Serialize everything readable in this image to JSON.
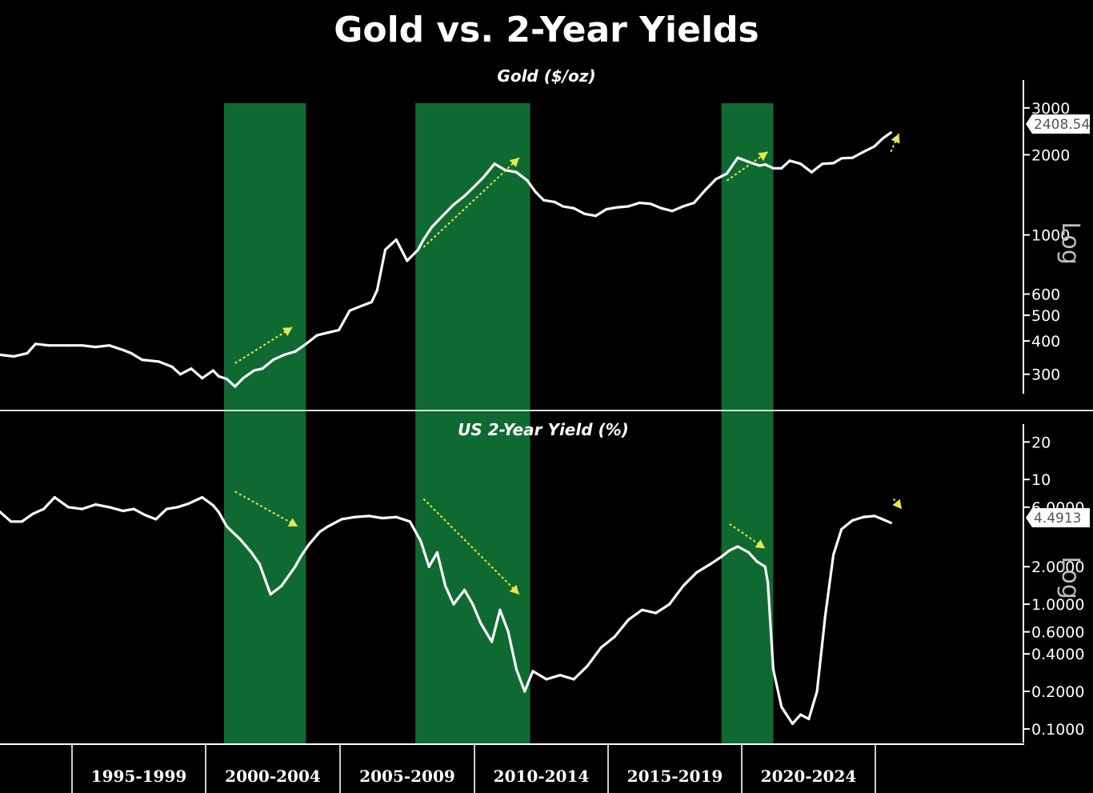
{
  "title": "Gold vs. 2-Year Yields",
  "axis_scale_label": "Log",
  "colors": {
    "background": "#000000",
    "line": "#ffffff",
    "highlight": "#0f6a32",
    "arrow": "#e8e84a",
    "axis": "#ffffff"
  },
  "x_labels": [
    "1995-1999",
    "2000-2004",
    "2005-2009",
    "2010-2014",
    "2015-2019",
    "2020-2024"
  ],
  "chart_data": [
    {
      "type": "line",
      "title": "Gold ($/oz)",
      "ylabel": "",
      "y_scale": "log",
      "ylim": [
        240,
        3300
      ],
      "xlim": [
        1990.0,
        2030.0
      ],
      "y_ticks": [
        {
          "value": 3000,
          "label": "3000"
        },
        {
          "value": 2000,
          "label": "2000"
        },
        {
          "value": 1000,
          "label": "1000"
        },
        {
          "value": 600,
          "label": "600"
        },
        {
          "value": 500,
          "label": "500"
        },
        {
          "value": 400,
          "label": "400"
        },
        {
          "value": 300,
          "label": "300"
        }
      ],
      "last_value_label": "2408.54",
      "highlight_periods": [
        [
          1998.2,
          2001.2
        ],
        [
          2005.2,
          2009.4
        ],
        [
          2016.4,
          2018.3
        ]
      ],
      "trend_arrows": [
        {
          "from": [
            1998.6,
            330
          ],
          "to": [
            2000.7,
            450
          ],
          "direction": "up"
        },
        {
          "from": [
            2005.5,
            900
          ],
          "to": [
            2009.0,
            1950
          ],
          "direction": "up"
        },
        {
          "from": [
            2016.6,
            1600
          ],
          "to": [
            2018.1,
            2050
          ],
          "direction": "up"
        },
        {
          "from": [
            2022.6,
            2050
          ],
          "to": [
            2022.9,
            2400
          ],
          "direction": "up"
        }
      ],
      "series": [
        {
          "x": [
            1990.0,
            1990.5,
            1991.0,
            1991.3,
            1991.8,
            1992.5,
            1993.0,
            1993.5,
            1994.0,
            1994.5,
            1994.8,
            1995.2,
            1995.8,
            1996.3,
            1996.6,
            1997.0,
            1997.4,
            1997.8,
            1998.0,
            1998.3,
            1998.6,
            1998.9,
            1999.3,
            1999.6,
            2000.0,
            2000.4,
            2000.8,
            2001.2,
            2001.6,
            2002.0,
            2002.4,
            2002.8,
            2003.2,
            2003.6,
            2003.8,
            2004.1,
            2004.5,
            2004.9,
            2005.3,
            2005.5,
            2005.8,
            2006.2,
            2006.6,
            2007.0,
            2007.3,
            2007.7,
            2008.1,
            2008.5,
            2008.9,
            2009.3,
            2009.6,
            2009.9,
            2010.3,
            2010.6,
            2011.0,
            2011.4,
            2011.8,
            2012.2,
            2012.6,
            2013.0,
            2013.4,
            2013.8,
            2014.2,
            2014.6,
            2015.0,
            2015.4,
            2015.8,
            2016.2,
            2016.6,
            2017.0,
            2017.4,
            2017.8,
            2018.0,
            2018.3,
            2018.6,
            2018.9,
            2019.3,
            2019.7,
            2020.1,
            2020.5,
            2020.8,
            2021.2,
            2021.6,
            2022.0,
            2022.3,
            2022.6
          ],
          "values": [
            355,
            350,
            360,
            390,
            385,
            385,
            385,
            380,
            385,
            370,
            360,
            340,
            335,
            320,
            300,
            315,
            290,
            310,
            295,
            288,
            270,
            290,
            310,
            315,
            340,
            355,
            365,
            390,
            420,
            430,
            440,
            520,
            540,
            560,
            620,
            880,
            960,
            800,
            880,
            960,
            1070,
            1180,
            1300,
            1400,
            1500,
            1650,
            1850,
            1750,
            1720,
            1600,
            1450,
            1350,
            1330,
            1280,
            1260,
            1200,
            1180,
            1250,
            1270,
            1280,
            1320,
            1310,
            1260,
            1230,
            1280,
            1320,
            1470,
            1620,
            1700,
            1950,
            1880,
            1820,
            1840,
            1780,
            1780,
            1900,
            1850,
            1720,
            1850,
            1860,
            1940,
            1950,
            2050,
            2150,
            2300,
            2420
          ]
        }
      ]
    },
    {
      "type": "line",
      "title": "US 2-Year Yield (%)",
      "ylabel": "",
      "y_scale": "log",
      "ylim": [
        0.09,
        24
      ],
      "xlim": [
        1990.0,
        2030.0
      ],
      "y_ticks": [
        {
          "value": 20,
          "label": "20"
        },
        {
          "value": 10,
          "label": "10"
        },
        {
          "value": 6,
          "label": "6.0000"
        },
        {
          "value": 2,
          "label": "2.0000"
        },
        {
          "value": 1,
          "label": "1.0000"
        },
        {
          "value": 0.6,
          "label": "0.6000"
        },
        {
          "value": 0.4,
          "label": "0.4000"
        },
        {
          "value": 0.2,
          "label": "0.2000"
        },
        {
          "value": 0.1,
          "label": "0.1000"
        }
      ],
      "last_value_label": "4.4913",
      "highlight_periods": [
        [
          1998.2,
          2001.2
        ],
        [
          2005.2,
          2009.4
        ],
        [
          2016.4,
          2018.3
        ]
      ],
      "trend_arrows": [
        {
          "from": [
            1998.6,
            8.0
          ],
          "to": [
            2000.9,
            4.2
          ],
          "direction": "down"
        },
        {
          "from": [
            2005.5,
            7.0
          ],
          "to": [
            2009.0,
            1.2
          ],
          "direction": "down"
        },
        {
          "from": [
            2016.7,
            4.4
          ],
          "to": [
            2018.0,
            2.8
          ],
          "direction": "down"
        },
        {
          "from": [
            2022.7,
            7.0
          ],
          "to": [
            2023.0,
            5.8
          ],
          "direction": "down"
        }
      ],
      "series": [
        {
          "x": [
            1990.0,
            1990.4,
            1990.8,
            1991.2,
            1991.6,
            1992.0,
            1992.5,
            1993.0,
            1993.5,
            1994.0,
            1994.5,
            1994.9,
            1995.3,
            1995.7,
            1996.1,
            1996.5,
            1996.9,
            1997.4,
            1997.8,
            1998.0,
            1998.3,
            1998.8,
            1999.2,
            1999.5,
            1999.9,
            2000.3,
            2000.8,
            2001.0,
            2001.3,
            2001.7,
            2002.0,
            2002.5,
            2003.0,
            2003.5,
            2004.0,
            2004.5,
            2005.0,
            2005.4,
            2005.7,
            2006.0,
            2006.3,
            2006.6,
            2007.0,
            2007.3,
            2007.6,
            2008.0,
            2008.3,
            2008.6,
            2008.9,
            2009.2,
            2009.5,
            2010.0,
            2010.5,
            2011.0,
            2011.5,
            2012.0,
            2012.5,
            2013.0,
            2013.5,
            2014.0,
            2014.5,
            2015.0,
            2015.5,
            2016.0,
            2016.4,
            2016.7,
            2017.0,
            2017.4,
            2017.7,
            2018.0,
            2018.1,
            2018.3,
            2018.6,
            2019.0,
            2019.3,
            2019.6,
            2019.9,
            2020.2,
            2020.5,
            2020.8,
            2021.2,
            2021.6,
            2022.0,
            2022.3,
            2022.6
          ],
          "values": [
            5.5,
            4.6,
            4.6,
            5.3,
            5.8,
            7.2,
            6.0,
            5.8,
            6.3,
            6.0,
            5.6,
            5.8,
            5.2,
            4.8,
            5.8,
            6.0,
            6.4,
            7.2,
            6.2,
            5.5,
            4.2,
            3.3,
            2.6,
            2.1,
            1.2,
            1.4,
            2.0,
            2.4,
            3.0,
            3.8,
            4.2,
            4.8,
            5.0,
            5.1,
            4.9,
            5.0,
            4.6,
            3.2,
            2.0,
            2.6,
            1.4,
            1.0,
            1.3,
            1.0,
            0.7,
            0.5,
            0.9,
            0.6,
            0.3,
            0.2,
            0.29,
            0.25,
            0.27,
            0.25,
            0.32,
            0.45,
            0.55,
            0.75,
            0.9,
            0.85,
            1.0,
            1.4,
            1.8,
            2.1,
            2.4,
            2.7,
            2.9,
            2.6,
            2.2,
            2.0,
            1.5,
            0.3,
            0.15,
            0.11,
            0.13,
            0.12,
            0.2,
            0.8,
            2.5,
            4.0,
            4.7,
            5.0,
            5.1,
            4.8,
            4.5
          ]
        }
      ]
    }
  ]
}
